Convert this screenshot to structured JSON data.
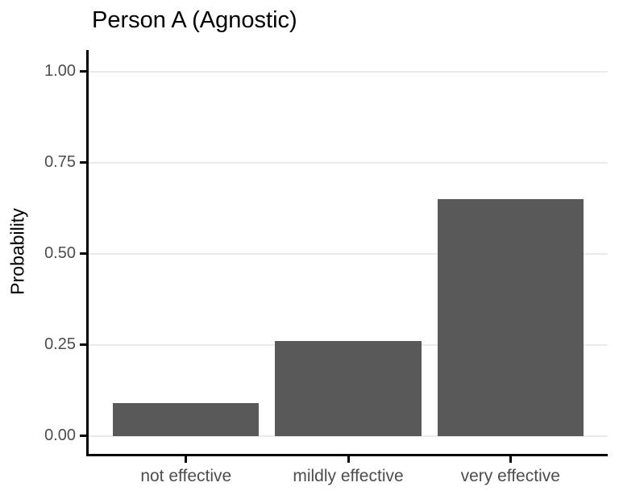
{
  "chart_data": {
    "type": "bar",
    "title": "Person A (Agnostic)",
    "xlabel": "",
    "ylabel": "Probability",
    "categories": [
      "not effective",
      "mildly effective",
      "very effective"
    ],
    "values": [
      0.09,
      0.26,
      0.65
    ],
    "ylim": [
      0,
      1
    ],
    "yticks": [
      0,
      0.25,
      0.5,
      0.75,
      1
    ],
    "ytick_labels": [
      "0.00",
      "0.25",
      "0.50",
      "0.75",
      "1.00"
    ],
    "grid": "horizontal-gridlines-at-yticks",
    "legend": "none",
    "colors": {
      "bar_fill": "#595959",
      "gridline": "#EBEBEB",
      "axis_line": "#000000",
      "tick_mark": "#000000",
      "tick_text": "#4D4D4D",
      "title_text": "#000000"
    }
  }
}
